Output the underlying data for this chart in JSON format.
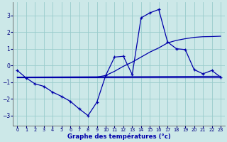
{
  "title": "Graphe des températures (°c)",
  "background_color": "#cce8e8",
  "grid_color": "#99cccc",
  "line_color": "#0000aa",
  "xlim": [
    -0.5,
    23.5
  ],
  "ylim": [
    -3.6,
    3.8
  ],
  "yticks": [
    -3,
    -2,
    -1,
    0,
    1,
    2,
    3
  ],
  "xticks": [
    0,
    1,
    2,
    3,
    4,
    5,
    6,
    7,
    8,
    9,
    10,
    11,
    12,
    13,
    14,
    15,
    16,
    17,
    18,
    19,
    20,
    21,
    22,
    23
  ],
  "curve_x": [
    0,
    1,
    2,
    3,
    4,
    5,
    6,
    7,
    8,
    9,
    10,
    11,
    12,
    13,
    14,
    15,
    16,
    17,
    18,
    19,
    20,
    21,
    22,
    23
  ],
  "curve_y": [
    -0.3,
    -0.75,
    -1.1,
    -1.25,
    -1.6,
    -1.85,
    -2.15,
    -2.6,
    -3.0,
    -2.2,
    -0.6,
    0.5,
    0.55,
    -0.55,
    2.85,
    3.15,
    3.35,
    1.4,
    1.0,
    0.95,
    -0.25,
    -0.5,
    -0.3,
    -0.7
  ],
  "line1_x": [
    0,
    23
  ],
  "line1_y": [
    -0.7,
    -0.7
  ],
  "line2_x": [
    0,
    23
  ],
  "line2_y": [
    -0.7,
    -0.65
  ],
  "line3_x": [
    0,
    9,
    10,
    11,
    12,
    13,
    14,
    15,
    16,
    17,
    18,
    19,
    20,
    21,
    22,
    23
  ],
  "line3_y": [
    -0.7,
    -0.7,
    -0.6,
    -0.35,
    -0.05,
    0.2,
    0.5,
    0.8,
    1.05,
    1.35,
    1.5,
    1.6,
    1.68,
    1.72,
    1.73,
    1.75
  ]
}
